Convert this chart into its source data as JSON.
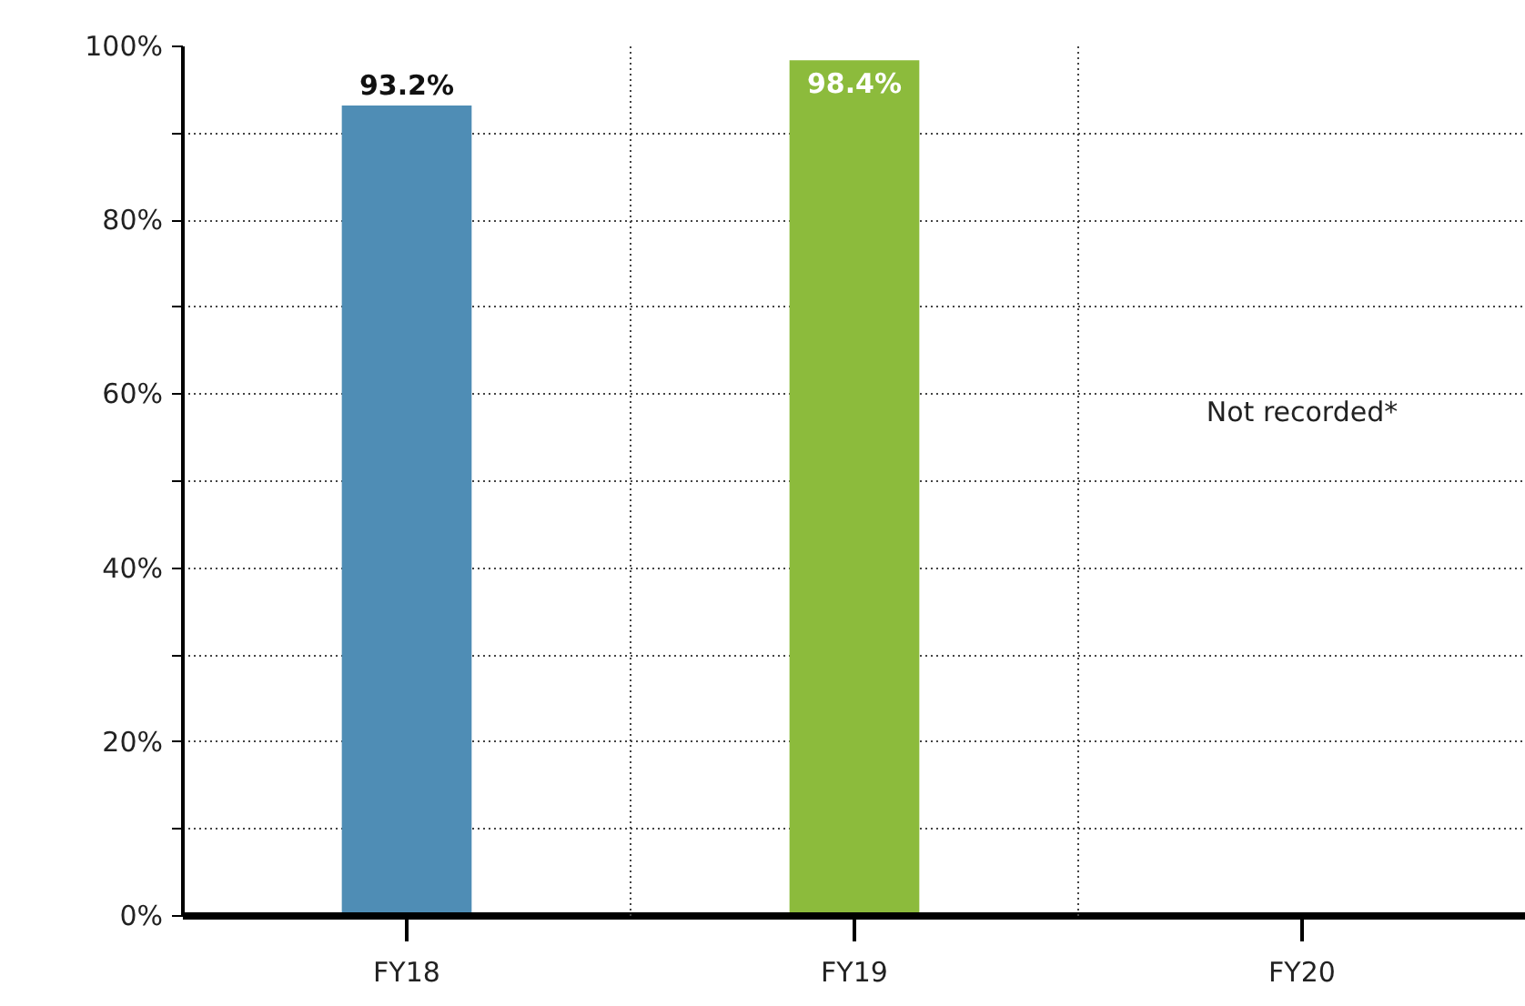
{
  "chart_data": {
    "type": "bar",
    "categories": [
      "FY18",
      "FY19",
      "FY20"
    ],
    "values": [
      93.2,
      98.4,
      null
    ],
    "colors": [
      "#4f8db5",
      "#8cbb3c",
      "#cccccc"
    ],
    "value_labels": [
      "93.2%",
      "98.4%",
      null
    ],
    "ylim": [
      0,
      100
    ],
    "yticks": [
      {
        "value": 0,
        "label": "0%"
      },
      {
        "value": 10,
        "label": null
      },
      {
        "value": 20,
        "label": "20%"
      },
      {
        "value": 30,
        "label": null
      },
      {
        "value": 40,
        "label": "40%"
      },
      {
        "value": 50,
        "label": null
      },
      {
        "value": 60,
        "label": "60%"
      },
      {
        "value": 70,
        "label": null
      },
      {
        "value": 80,
        "label": "80%"
      },
      {
        "value": 90,
        "label": null
      },
      {
        "value": 100,
        "label": "100%"
      }
    ],
    "annotations": [
      "Not recorded*"
    ],
    "grid": true
  }
}
